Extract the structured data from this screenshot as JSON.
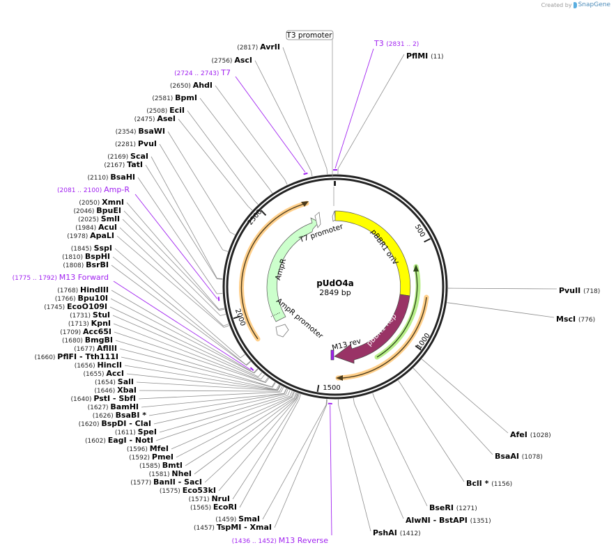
{
  "credit": {
    "prefix": "Created by",
    "brand": "SnapGene"
  },
  "plasmid": {
    "name": "pUdO4a",
    "length_label": "2849 bp",
    "length": 2849
  },
  "ring_ticks": [
    {
      "pos": 500,
      "label": "500"
    },
    {
      "pos": 1000,
      "label": "1000"
    },
    {
      "pos": 1500,
      "label": "1500"
    },
    {
      "pos": 2000,
      "label": "2000"
    },
    {
      "pos": 2500,
      "label": "2500"
    }
  ],
  "colors": {
    "ring": "#222222",
    "leader": "#8c8c8c",
    "primer": "#a020f0",
    "ori": "#ffff00",
    "rep": "#993366",
    "ampr": "#ccffcc",
    "orange_orf": "#ffb84d",
    "green_orf": "#99e64d"
  },
  "features": {
    "ori": {
      "label": "pBBR1 oriV"
    },
    "rep": {
      "label": "pBBR1 Rep"
    },
    "ampr": {
      "label": "AmpR"
    },
    "ampr_promoter": {
      "label": "AmpR promoter"
    },
    "t7_promoter": {
      "label": "T7 promoter"
    },
    "t3_promoter": {
      "label": "T3 promoter"
    },
    "m13_rev": {
      "label": "M13 rev"
    }
  },
  "primers": [
    {
      "name": "T3",
      "range": "(2831 .. 2)"
    },
    {
      "name": "T7",
      "range": "(2724 .. 2743)"
    },
    {
      "name": "Amp-R",
      "range": "(2081 .. 2100)"
    },
    {
      "name": "M13 Forward",
      "range": "(1775 .. 1792)"
    },
    {
      "name": "M13 Reverse",
      "range": "(1436 .. 1452)"
    }
  ],
  "sites_left": [
    {
      "name": "AvrII",
      "pos": "(2817)"
    },
    {
      "name": "AscI",
      "pos": "(2756)"
    },
    {
      "name": "AhdI",
      "pos": "(2650)"
    },
    {
      "name": "BpmI",
      "pos": "(2581)"
    },
    {
      "name": "EciI",
      "pos": "(2508)"
    },
    {
      "name": "AseI",
      "pos": "(2475)"
    },
    {
      "name": "BsaWI",
      "pos": "(2354)"
    },
    {
      "name": "PvuI",
      "pos": "(2281)"
    },
    {
      "name": "ScaI",
      "pos": "(2169)"
    },
    {
      "name": "TatI",
      "pos": "(2167)"
    },
    {
      "name": "BsaHI",
      "pos": "(2110)"
    },
    {
      "name": "XmnI",
      "pos": "(2050)"
    },
    {
      "name": "BpuEI",
      "pos": "(2046)"
    },
    {
      "name": "SmlI",
      "pos": "(2025)"
    },
    {
      "name": "AcuI",
      "pos": "(1984)"
    },
    {
      "name": "ApaLI",
      "pos": "(1978)"
    },
    {
      "name": "SspI",
      "pos": "(1845)"
    },
    {
      "name": "BspHI",
      "pos": "(1810)"
    },
    {
      "name": "BsrBI",
      "pos": "(1808)"
    },
    {
      "name": "HindIII",
      "pos": "(1768)"
    },
    {
      "name": "Bpu10I",
      "pos": "(1766)"
    },
    {
      "name": "EcoO109I",
      "pos": "(1745)"
    },
    {
      "name": "StuI",
      "pos": "(1731)"
    },
    {
      "name": "KpnI",
      "pos": "(1713)"
    },
    {
      "name": "Acc65I",
      "pos": "(1709)"
    },
    {
      "name": "BmgBI",
      "pos": "(1680)"
    },
    {
      "name": "AflIII",
      "pos": "(1677)"
    },
    {
      "name": "PflFI   - Tth111I",
      "pos": "(1660)"
    },
    {
      "name": "HincII",
      "pos": "(1656)"
    },
    {
      "name": "AccI",
      "pos": "(1655)"
    },
    {
      "name": "SalI",
      "pos": "(1654)"
    },
    {
      "name": "XbaI",
      "pos": "(1646)"
    },
    {
      "name": "PstI   - SbfI",
      "pos": "(1640)"
    },
    {
      "name": "BamHI",
      "pos": "(1627)"
    },
    {
      "name": "BsaBI  *",
      "pos": "(1626)"
    },
    {
      "name": "BspDI   - ClaI",
      "pos": "(1620)"
    },
    {
      "name": "SpeI",
      "pos": "(1611)"
    },
    {
      "name": "EagI   - NotI",
      "pos": "(1602)"
    },
    {
      "name": "MfeI",
      "pos": "(1596)"
    },
    {
      "name": "PmeI",
      "pos": "(1592)"
    },
    {
      "name": "BmtI",
      "pos": "(1585)"
    },
    {
      "name": "NheI",
      "pos": "(1581)"
    },
    {
      "name": "BanII   - SacI",
      "pos": "(1577)"
    },
    {
      "name": "Eco53kI",
      "pos": "(1575)"
    },
    {
      "name": "NruI",
      "pos": "(1571)"
    },
    {
      "name": "EcoRI",
      "pos": "(1565)"
    },
    {
      "name": "SmaI",
      "pos": "(1459)"
    },
    {
      "name": "TspMI   - XmaI",
      "pos": "(1457)"
    }
  ],
  "sites_right": [
    {
      "name": "PflMI",
      "pos": "(11)"
    },
    {
      "name": "PvuII",
      "pos": "(718)"
    },
    {
      "name": "MscI",
      "pos": "(776)"
    },
    {
      "name": "AfeI",
      "pos": "(1028)"
    },
    {
      "name": "BsaAI",
      "pos": "(1078)"
    },
    {
      "name": "BclI  *",
      "pos": "(1156)"
    },
    {
      "name": "BseRI",
      "pos": "(1271)"
    },
    {
      "name": "AlwNI   - BstAPI",
      "pos": "(1351)"
    },
    {
      "name": "PshAI",
      "pos": "(1412)"
    }
  ]
}
